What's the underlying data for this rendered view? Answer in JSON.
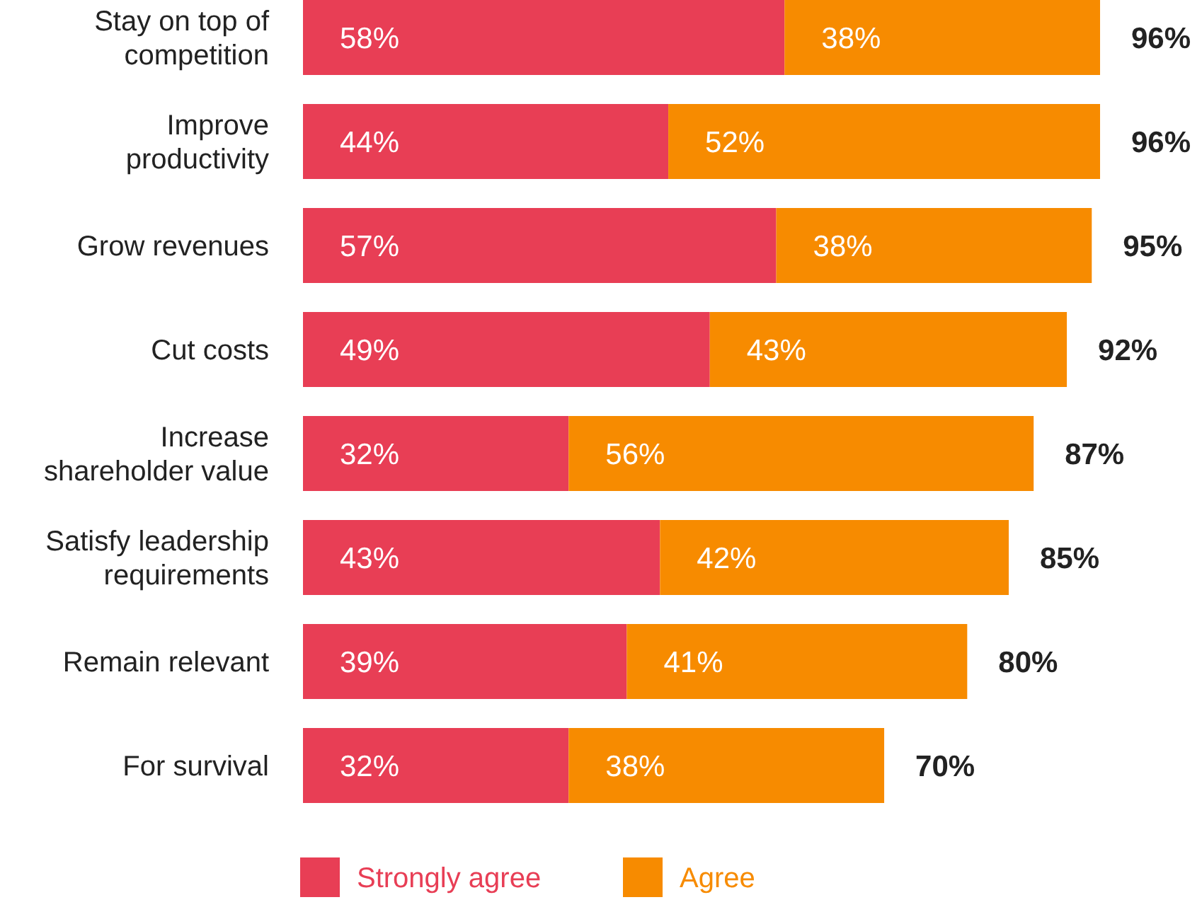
{
  "chart_data": {
    "type": "bar",
    "orientation": "horizontal",
    "stacked": true,
    "tick_labels": "y",
    "legend": "bottom",
    "categories": [
      "Stay on top of competition",
      "Improve productivity",
      "Grow revenues",
      "Cut costs",
      "Increase shareholder value",
      "Satisfy leadership requirements",
      "Remain relevant",
      "For survival"
    ],
    "series": [
      {
        "name": "Strongly agree",
        "color": "#e83e55",
        "values": [
          58,
          44,
          57,
          49,
          32,
          43,
          39,
          32
        ],
        "value_labels": [
          "58%",
          "44%",
          "57%",
          "49%",
          "32%",
          "43%",
          "39%",
          "32%"
        ]
      },
      {
        "name": "Agree",
        "color": "#f78b00",
        "values": [
          38,
          52,
          38,
          43,
          56,
          42,
          41,
          38
        ],
        "value_labels": [
          "38%",
          "52%",
          "38%",
          "43%",
          "56%",
          "42%",
          "41%",
          "38%"
        ]
      }
    ],
    "totals": [
      "96%",
      "96%",
      "95%",
      "92%",
      "87%",
      "85%",
      "80%",
      "70%"
    ]
  }
}
